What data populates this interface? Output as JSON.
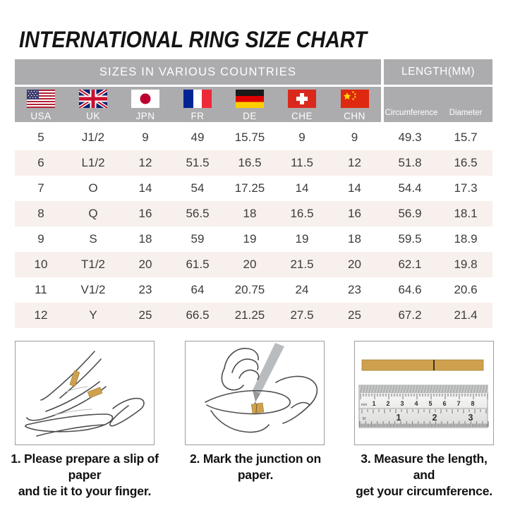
{
  "title": "INTERNATIONAL RING SIZE CHART",
  "table": {
    "sizes_header": "SIZES IN VARIOUS COUNTRIES",
    "length_header": "LENGTH(MM)",
    "countries": [
      {
        "code": "USA",
        "flag": "usa-flag"
      },
      {
        "code": "UK",
        "flag": "uk-flag"
      },
      {
        "code": "JPN",
        "flag": "japan-flag"
      },
      {
        "code": "FR",
        "flag": "france-flag"
      },
      {
        "code": "DE",
        "flag": "germany-flag"
      },
      {
        "code": "CHE",
        "flag": "switzerland-flag"
      },
      {
        "code": "CHN",
        "flag": "china-flag"
      }
    ],
    "length_columns": [
      "Circumference",
      "Diameter"
    ],
    "rows": [
      [
        "5",
        "J1/2",
        "9",
        "49",
        "15.75",
        "9",
        "9",
        "49.3",
        "15.7"
      ],
      [
        "6",
        "L1/2",
        "12",
        "51.5",
        "16.5",
        "11.5",
        "12",
        "51.8",
        "16.5"
      ],
      [
        "7",
        "O",
        "14",
        "54",
        "17.25",
        "14",
        "14",
        "54.4",
        "17.3"
      ],
      [
        "8",
        "Q",
        "16",
        "56.5",
        "18",
        "16.5",
        "16",
        "56.9",
        "18.1"
      ],
      [
        "9",
        "S",
        "18",
        "59",
        "19",
        "19",
        "18",
        "59.5",
        "18.9"
      ],
      [
        "10",
        "T1/2",
        "20",
        "61.5",
        "20",
        "21.5",
        "20",
        "62.1",
        "19.8"
      ],
      [
        "11",
        "V1/2",
        "23",
        "64",
        "20.75",
        "24",
        "23",
        "64.6",
        "20.6"
      ],
      [
        "12",
        "Y",
        "25",
        "66.5",
        "21.25",
        "27.5",
        "25",
        "67.2",
        "21.4"
      ]
    ]
  },
  "steps": [
    {
      "icon": "hand-with-paper-slip-icon",
      "lines": [
        "1. Please prepare a slip of paper",
        "and tie it to your finger."
      ]
    },
    {
      "icon": "pen-marking-paper-icon",
      "lines": [
        "2. Mark the junction on paper."
      ]
    },
    {
      "icon": "ruler-measure-icon",
      "lines": [
        "3. Measure the length, and",
        "get your circumference."
      ]
    }
  ],
  "ruler": {
    "top_scale": [
      "1",
      "2",
      "3",
      "4",
      "5",
      "6",
      "7",
      "8"
    ],
    "bottom_scale": [
      "1",
      "2",
      "3"
    ],
    "unit_top": "mm",
    "unit_bottom": "M"
  },
  "colors": {
    "header_gray": "#acacae",
    "row_alt_pink": "#f8f0ec",
    "paper_gold": "#cfa14e",
    "header_text": "#ffffff",
    "body_text": "#3b3b3b"
  }
}
